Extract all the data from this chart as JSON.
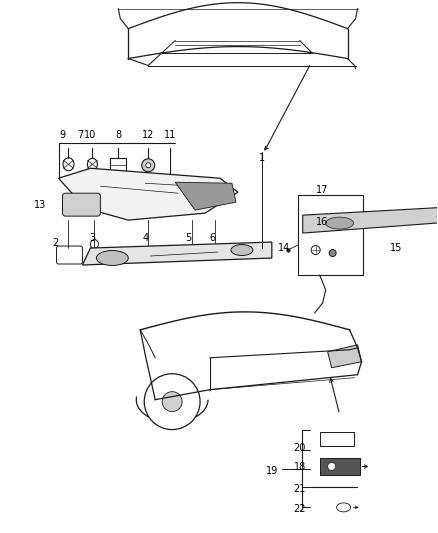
{
  "bg_color": "#ffffff",
  "line_color": "#1a1a1a",
  "label_color": "#000000",
  "fig_width": 4.38,
  "fig_height": 5.33,
  "dpi": 100,
  "font_size": 7.0
}
